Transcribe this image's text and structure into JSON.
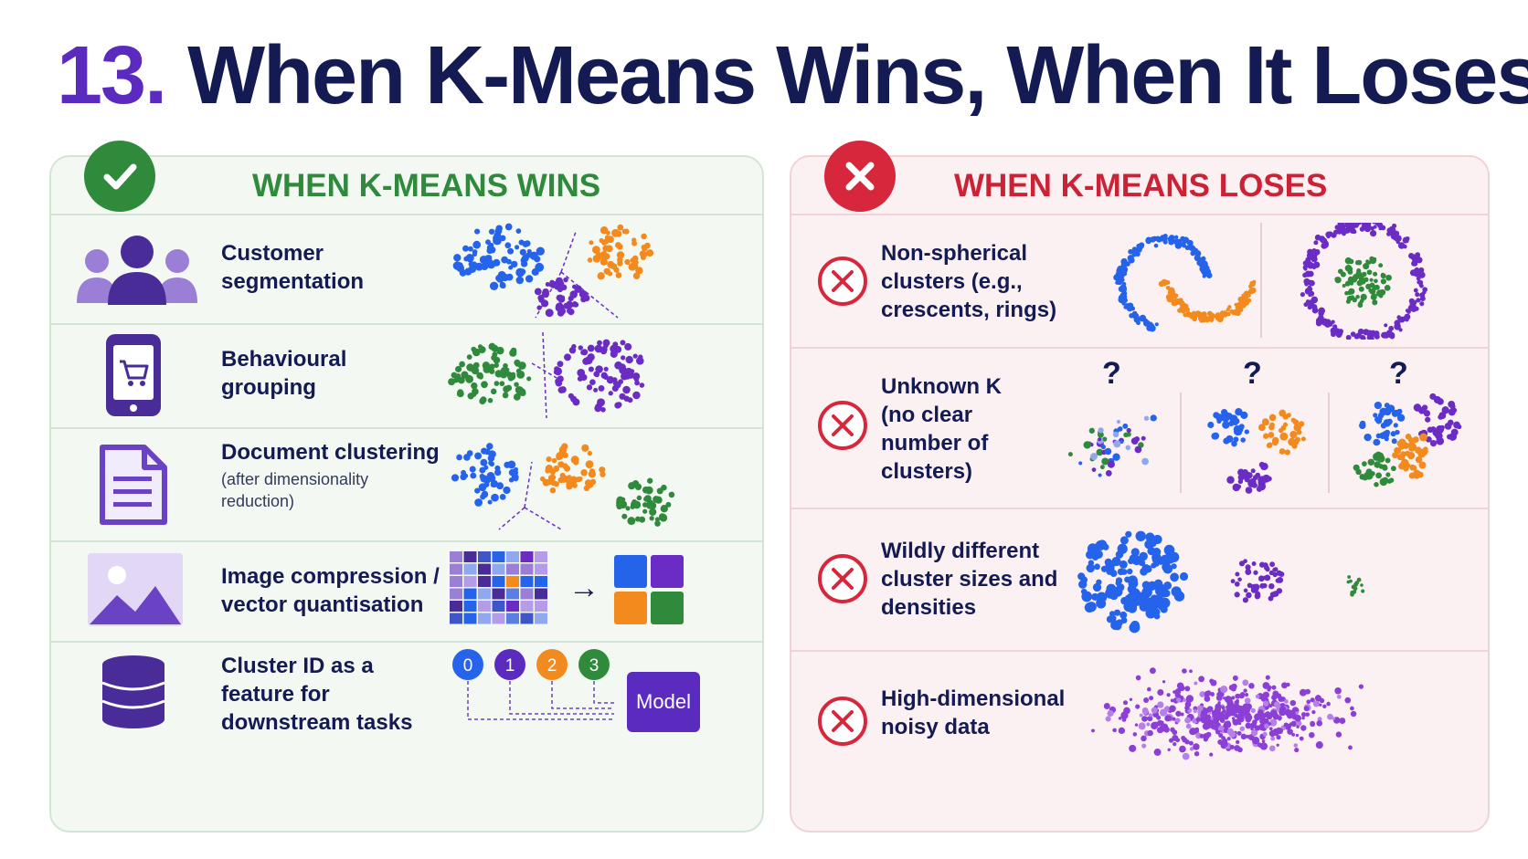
{
  "header": {
    "number": "13.",
    "title": "When K-Means Wins, When It Loses"
  },
  "colors": {
    "navy": "#141a52",
    "purple": "#5b2bbf",
    "green": "#2f8a3c",
    "red": "#d7273c",
    "blue": "#2563eb",
    "orange": "#f28a1e"
  },
  "wins": {
    "title": "WHEN K-MEANS WINS",
    "badge_icon": "check-icon",
    "items": [
      {
        "icon": "users-icon",
        "label": "Customer segmentation",
        "note": ""
      },
      {
        "icon": "mobile-cart-icon",
        "label": "Behavioural grouping",
        "note": ""
      },
      {
        "icon": "document-icon",
        "label": "Document clustering",
        "note": "(after dimensionality reduction)"
      },
      {
        "icon": "image-icon",
        "label": "Image compression / vector quantisation",
        "note": ""
      },
      {
        "icon": "database-icon",
        "label": "Cluster ID as a feature for downstream tasks",
        "note": ""
      }
    ],
    "cluster_ids": [
      "0",
      "1",
      "2",
      "3"
    ],
    "model_label": "Model",
    "arrow": "→"
  },
  "loses": {
    "title": "WHEN K-MEANS LOSES",
    "badge_icon": "x-icon",
    "items": [
      {
        "icon": "x-circle-icon",
        "label": "Non-spherical clusters (e.g., crescents, rings)"
      },
      {
        "icon": "x-circle-icon",
        "label": "Unknown K (no clear number of clusters)"
      },
      {
        "icon": "x-circle-icon",
        "label": "Wildly different cluster sizes and densities"
      },
      {
        "icon": "x-circle-icon",
        "label": "High-dimensional noisy data"
      }
    ],
    "question_mark": "?"
  }
}
